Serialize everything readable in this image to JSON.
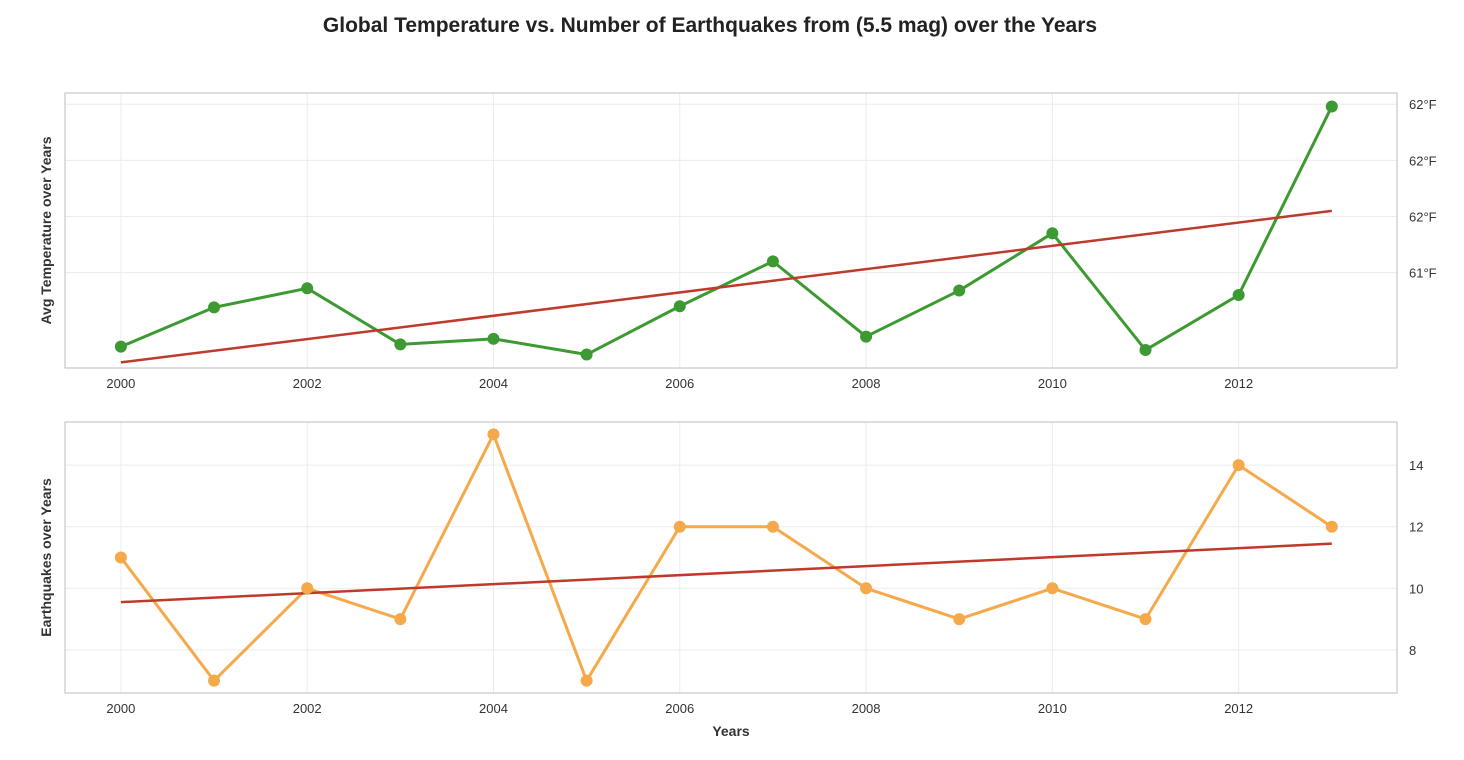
{
  "chart_data": {
    "type": "line",
    "title": "Global Temperature vs. Number of Earthquakes from (5.5 mag) over the Years",
    "xlabel": "Years",
    "panels": [
      {
        "ylabel": "Avg Temperature over Years",
        "x": [
          2000,
          2001,
          2002,
          2003,
          2004,
          2005,
          2006,
          2007,
          2008,
          2009,
          2010,
          2011,
          2012,
          2013
        ],
        "xlim": [
          1999.4,
          2013.7
        ],
        "xticks": [
          2000,
          2002,
          2004,
          2006,
          2008,
          2010,
          2012
        ],
        "ylim": [
          60.15,
          62.6
        ],
        "yticks": [
          61.0,
          61.5,
          62.0,
          62.5
        ],
        "ytick_labels": [
          "61°F",
          "62°F",
          "62°F",
          "62°F"
        ],
        "yaxis_side": "right",
        "grid": true,
        "series": [
          {
            "values": [
              60.34,
              60.69,
              60.86,
              60.36,
              60.41,
              60.27,
              60.7,
              61.1,
              60.43,
              60.84,
              61.35,
              60.31,
              60.8,
              62.48
            ],
            "color": "#3d9a32",
            "markers": true
          }
        ],
        "trendline": {
          "start": 60.2,
          "end": 61.55,
          "color": "#c0392b"
        }
      },
      {
        "ylabel": "Earthquakes over Years",
        "x": [
          2000,
          2001,
          2002,
          2003,
          2004,
          2005,
          2006,
          2007,
          2008,
          2009,
          2010,
          2011,
          2012,
          2013
        ],
        "xlim": [
          1999.4,
          2013.7
        ],
        "xticks": [
          2000,
          2002,
          2004,
          2006,
          2008,
          2010,
          2012
        ],
        "ylim": [
          6.6,
          15.4
        ],
        "yticks": [
          8,
          10,
          12,
          14
        ],
        "ytick_labels": [
          "8",
          "10",
          "12",
          "14"
        ],
        "yaxis_side": "right",
        "grid": true,
        "series": [
          {
            "values": [
              11,
              7,
              10,
              9,
              15,
              7,
              12,
              12,
              10,
              9,
              10,
              9,
              14,
              12
            ],
            "color": "#f5a94a",
            "markers": true
          }
        ],
        "trendline": {
          "start": 9.55,
          "end": 11.45,
          "color": "#c0392b"
        }
      }
    ]
  }
}
